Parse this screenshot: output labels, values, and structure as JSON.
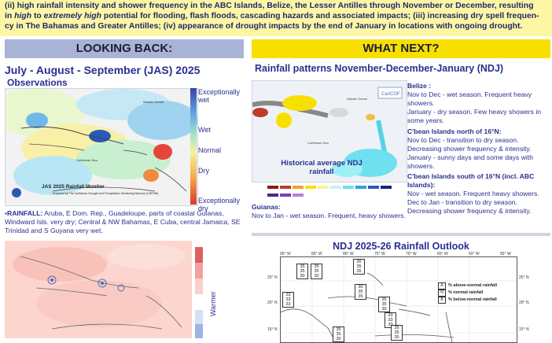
{
  "banner": {
    "line1_a": "(ii)",
    "line1_b": " high rainfall intensity and shower frequency in the ABC Islands, Belize, the Lesser Antilles through November or December, resulting",
    "line2_a": "in ",
    "line2_i1": "high",
    "line2_b": " to ",
    "line2_i2": "extremely high",
    "line2_c": " potential for flooding, flash floods, cascading hazards and associated impacts; ",
    "line2_d": "(iii)",
    "line2_e": " increasing dry spell frequen-",
    "line3_a": "cy in The Bahamas and Greater Antilles; ",
    "line3_b": "(iv)",
    "line3_c": " appearance of drought impacts by the end of January in locations with ongoing drought."
  },
  "left": {
    "header": "LOOKING BACK:",
    "section_title": "July - August - September (JAS) 2025",
    "sub_title": "Observations",
    "legend_labels": [
      "Exceptionally wet",
      "Wet",
      "Normal",
      "Dry",
      "Exceptionally dry"
    ],
    "map_caption": "JAS 2025 Rainfall Monitor",
    "map_credit": "Prepared by The Caribbean Drought and Precipitation Monitoring Network (CDPMN)",
    "rainfall_label": "RAINFALL:",
    "rainfall_text": " Aruba, E Dom. Rep., Guadeloupe, parts of coastal Guianas, Windward Isls. very dry; Central & NW Bahamas, E Cuba, central Jamaica, SE Trinidad and S Guyana very wet.",
    "warmer_label": "Warmer",
    "map_labels": {
      "atlantic": "Atlantic Ocean",
      "caribbean": "Caribbean Sea"
    }
  },
  "right": {
    "header": "WHAT NEXT?",
    "section_title": "Rainfall patterns November-December-January (NDJ)",
    "map_label": "Historical average NDJ rainfall",
    "map_logo": "CariCOF",
    "map_labels": {
      "atlantic": "Atlantic Ocean",
      "caribbean": "Caribbean Sea"
    },
    "regions": [
      {
        "head": "Belize :",
        "lines": [
          "Nov to Dec - wet season. Frequent heavy showers.",
          "January - dry season. Few heavy showers in some years."
        ]
      },
      {
        "head": "C'bean Islands north of 16°N:",
        "lines": [
          "Nov to Dec - transition to dry season. Decreasing shower frequency & intensity.",
          "January - sunny days and some days with showers."
        ]
      },
      {
        "head": "C'bean Islands south of 16°N (incl. ABC Islands):",
        "lines": [
          "Nov - wet season. Frequent heavy showers.",
          "Dec to Jan - transition to dry season. Decreasing shower frequency & intensity."
        ]
      }
    ],
    "guianas_head": "Guianas:",
    "guianas_text": "Nov to Jan - wet season. Frequent, heavy showers.",
    "outlook_title": "NDJ 2025-26 Rainfall Outlook",
    "lon_labels": [
      "90° W",
      "85° W",
      "80° W",
      "75° W",
      "70° W",
      "65° W",
      "60° W",
      "55° W"
    ],
    "lat_labels": [
      "25° N",
      "20° N",
      "15° N"
    ],
    "outlook_legend": [
      {
        "key": "A",
        "text": "% above-normal rainfall"
      },
      {
        "key": "N",
        "text": "% normal rainfall"
      },
      {
        "key": "B",
        "text": "% below-normal rainfall"
      }
    ],
    "prob_boxes": [
      [
        "35",
        "35",
        "30"
      ],
      [
        "35",
        "35",
        "30"
      ],
      [
        "30",
        "35",
        "35"
      ],
      [
        "33",
        "33",
        "33"
      ],
      [
        "30",
        "35",
        "35"
      ],
      [
        "35",
        "35",
        "30"
      ],
      [
        "33",
        "33",
        "33"
      ],
      [
        "35",
        "35",
        "30"
      ],
      [
        "35",
        "35",
        "30"
      ]
    ]
  },
  "colors": {
    "banner_bg": "#fdf6a4",
    "left_header_bg": "#a9b3d6",
    "right_header_bg": "#f7e000",
    "title_text": "#2a2f8f"
  }
}
